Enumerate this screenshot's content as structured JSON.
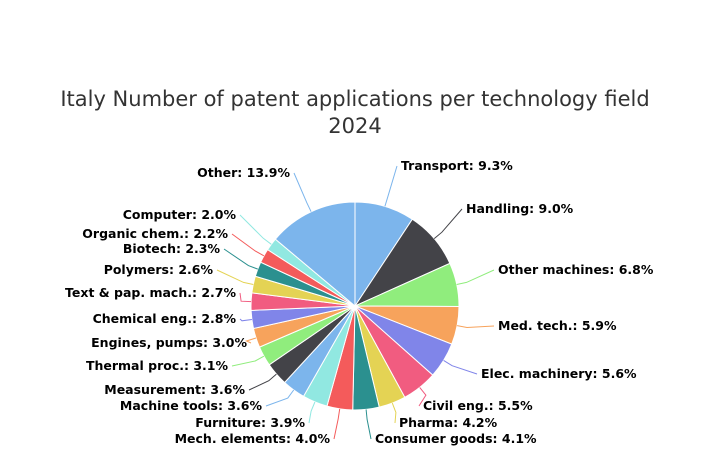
{
  "chart_data": {
    "type": "pie",
    "title": "Italy Number of patent applications per technology field",
    "subtitle": "2024",
    "slices": [
      {
        "label": "Transport",
        "value": 9.3,
        "display": "Transport: 9.3%",
        "color": "#7cb5ec"
      },
      {
        "label": "Handling",
        "value": 9.0,
        "display": "Handling: 9.0%",
        "color": "#434348"
      },
      {
        "label": "Other machines",
        "value": 6.8,
        "display": "Other machines: 6.8%",
        "color": "#90ed7d"
      },
      {
        "label": "Med. tech.",
        "value": 5.9,
        "display": "Med. tech.: 5.9%",
        "color": "#f7a35c"
      },
      {
        "label": "Elec. machinery",
        "value": 5.6,
        "display": "Elec. machinery: 5.6%",
        "color": "#8085e9"
      },
      {
        "label": "Civil eng.",
        "value": 5.5,
        "display": "Civil eng.: 5.5%",
        "color": "#f15c80"
      },
      {
        "label": "Pharma",
        "value": 4.2,
        "display": "Pharma: 4.2%",
        "color": "#e4d354"
      },
      {
        "label": "Consumer goods",
        "value": 4.1,
        "display": "Consumer goods: 4.1%",
        "color": "#2b908f"
      },
      {
        "label": "Mech. elements",
        "value": 4.0,
        "display": "Mech. elements: 4.0%",
        "color": "#f45b5b"
      },
      {
        "label": "Furniture",
        "value": 3.9,
        "display": "Furniture: 3.9%",
        "color": "#91e8e1"
      },
      {
        "label": "Machine tools",
        "value": 3.6,
        "display": "Machine tools: 3.6%",
        "color": "#7cb5ec"
      },
      {
        "label": "Measurement",
        "value": 3.6,
        "display": "Measurement: 3.6%",
        "color": "#434348"
      },
      {
        "label": "Thermal proc.",
        "value": 3.1,
        "display": "Thermal proc.: 3.1%",
        "color": "#90ed7d"
      },
      {
        "label": "Engines, pumps",
        "value": 3.0,
        "display": "Engines, pumps: 3.0%",
        "color": "#f7a35c"
      },
      {
        "label": "Chemical eng.",
        "value": 2.8,
        "display": "Chemical eng.: 2.8%",
        "color": "#8085e9"
      },
      {
        "label": "Text & pap. mach.",
        "value": 2.7,
        "display": "Text & pap. mach.: 2.7%",
        "color": "#f15c80"
      },
      {
        "label": "Polymers",
        "value": 2.6,
        "display": "Polymers: 2.6%",
        "color": "#e4d354"
      },
      {
        "label": "Biotech",
        "value": 2.3,
        "display": "Biotech: 2.3%",
        "color": "#2b908f"
      },
      {
        "label": "Organic chem.",
        "value": 2.2,
        "display": "Organic chem.: 2.2%",
        "color": "#f45b5b"
      },
      {
        "label": "Computer",
        "value": 2.0,
        "display": "Computer: 2.0%",
        "color": "#91e8e1"
      },
      {
        "label": "Other",
        "value": 13.9,
        "display": "Other: 13.9%",
        "color": "#7cb5ec"
      }
    ]
  }
}
